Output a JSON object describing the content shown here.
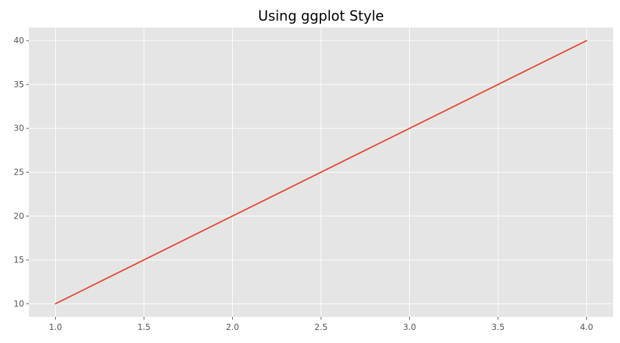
{
  "chart_data": {
    "type": "line",
    "title": "Using ggplot Style",
    "xlabel": "",
    "ylabel": "",
    "x": [
      1,
      2,
      3,
      4
    ],
    "series": [
      {
        "values": [
          10,
          20,
          30,
          40
        ],
        "color": "#E24A33"
      }
    ],
    "xlim": [
      0.85,
      4.15
    ],
    "ylim": [
      8.5,
      41.5
    ],
    "xticks": [
      1.0,
      1.5,
      2.0,
      2.5,
      3.0,
      3.5,
      4.0
    ],
    "xtick_labels": [
      "1.0",
      "1.5",
      "2.0",
      "2.5",
      "3.0",
      "3.5",
      "4.0"
    ],
    "yticks": [
      10,
      15,
      20,
      25,
      30,
      35,
      40
    ],
    "ytick_labels": [
      "10",
      "15",
      "20",
      "25",
      "30",
      "35",
      "40"
    ],
    "grid": true,
    "style": "ggplot",
    "colors": {
      "plot_background": "#E5E5E5",
      "grid": "#FFFFFF",
      "tick": "#555555"
    }
  }
}
